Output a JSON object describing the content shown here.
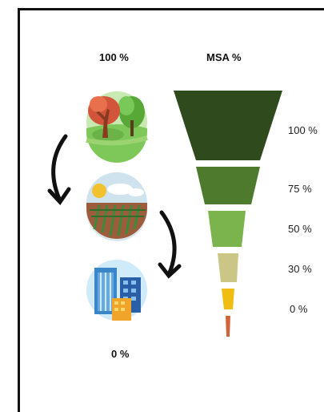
{
  "labels": {
    "top_left": "100 %",
    "top_right": "MSA %",
    "bottom_left": "0 %"
  },
  "funnel": {
    "levels": [
      {
        "label": "100 %",
        "value": 100,
        "color": "#2f4a1d"
      },
      {
        "label": "75 %",
        "value": 75,
        "color": "#4d7a2c"
      },
      {
        "label": "50 %",
        "value": 50,
        "color": "#7bb34d"
      },
      {
        "label": "30 %",
        "value": 30,
        "color": "#cbc586"
      },
      {
        "label": "0 %",
        "value": 0,
        "color": "#f0bd12"
      }
    ],
    "tip_color": "#d0643a"
  },
  "icons": [
    "forest-icon",
    "cropland-icon",
    "city-icon"
  ]
}
